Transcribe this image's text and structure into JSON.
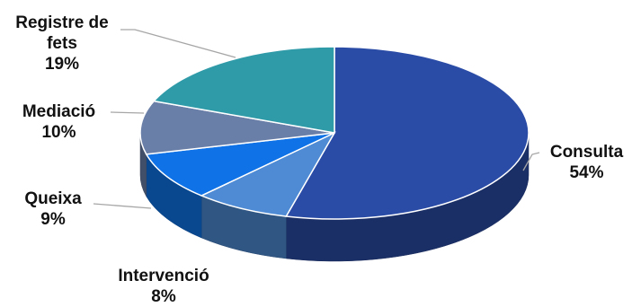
{
  "chart_data": {
    "type": "pie",
    "three_d": true,
    "legend": "none",
    "slices": [
      {
        "label": "Consulta",
        "percent_label": "54%",
        "value": 54,
        "color": "#2b4ca6"
      },
      {
        "label": "Intervenció",
        "percent_label": "8%",
        "value": 8,
        "color": "#4e8bd4"
      },
      {
        "label": "Queixa",
        "percent_label": "9%",
        "value": 9,
        "color": "#0f72e6"
      },
      {
        "label": "Mediació",
        "percent_label": "10%",
        "value": 10,
        "color": "#6a7fa8"
      },
      {
        "label": "Registre de fets",
        "percent_label": "19%",
        "value": 19,
        "color": "#2f9aa8"
      }
    ]
  }
}
